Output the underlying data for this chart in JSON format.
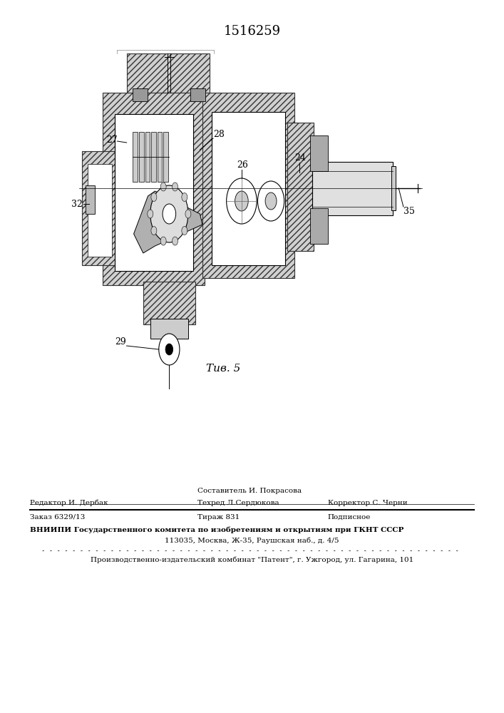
{
  "patent_number": "1516259",
  "fig_label": "Τив. 5",
  "editor_line": "Редактор И. Дербак",
  "composer_line1": "Составитель И. Покрасова",
  "techred_line": "Техред Л.Сердюкова",
  "corrector_line": "Корректор С. Черни",
  "order_line": "Заказ 6329/13",
  "tirazh_line": "Тираж 831",
  "podpisnoe_line": "Подписное",
  "vniipii_line1": "ВНИИПИ Государственного комитета по изобретениям и открытиям при ГКНТ СССР",
  "vniipii_line2": "113035, Москва, Ж-35, Раушская наб., д. 4/5",
  "proizv_line": "Производственно-издательский комбинат \"Патент\", г. Ужгород, ул. Гагарина, 101",
  "bg_color": "#ffffff",
  "text_color": "#000000"
}
